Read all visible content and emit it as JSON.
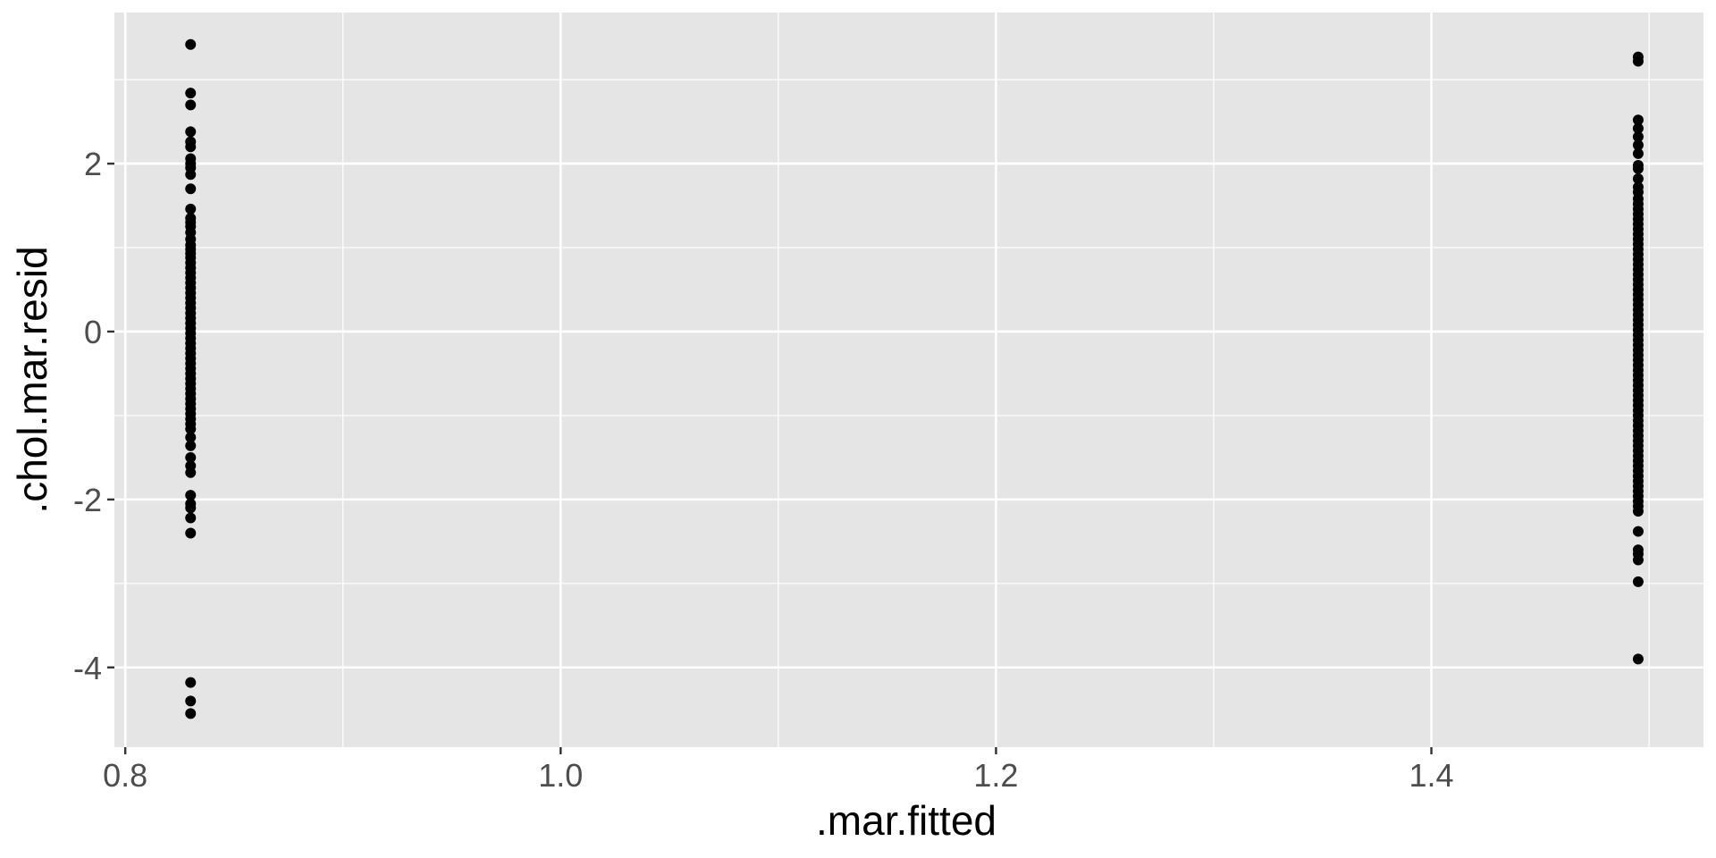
{
  "chart_data": {
    "type": "scatter",
    "title": "",
    "xlabel": ".mar.fitted",
    "ylabel": ".chol.mar.resid",
    "xlim": [
      0.795,
      1.525
    ],
    "ylim": [
      -4.95,
      3.8
    ],
    "x_ticks": [
      0.8,
      1.0,
      1.2,
      1.4
    ],
    "x_tick_labels": [
      "0.8",
      "1.0",
      "1.2",
      "1.4"
    ],
    "x_minor_ticks": [
      0.9,
      1.1,
      1.3,
      1.5
    ],
    "y_ticks": [
      -4,
      -2,
      0,
      2
    ],
    "y_tick_labels": [
      "-4",
      "-2",
      "0",
      "2"
    ],
    "y_minor_ticks": [
      -3,
      -1,
      1,
      3
    ],
    "grid": true,
    "legend": "none",
    "point_color": "#000000",
    "panel_color": "#e5e5e5",
    "grid_color": "#ffffff",
    "series": [
      {
        "x": 0.83,
        "values": [
          3.42,
          2.84,
          2.7,
          2.38,
          2.26,
          2.2,
          2.06,
          2.0,
          1.95,
          1.87,
          1.7,
          1.46,
          1.35,
          1.3,
          1.25,
          1.18,
          1.1,
          1.03,
          0.98,
          0.93,
          0.88,
          0.82,
          0.76,
          0.7,
          0.64,
          0.58,
          0.52,
          0.46,
          0.4,
          0.34,
          0.28,
          0.22,
          0.16,
          0.1,
          0.04,
          -0.02,
          -0.08,
          -0.14,
          -0.2,
          -0.26,
          -0.32,
          -0.38,
          -0.44,
          -0.5,
          -0.56,
          -0.62,
          -0.68,
          -0.74,
          -0.8,
          -0.86,
          -0.92,
          -0.98,
          -1.04,
          -1.1,
          -1.16,
          -1.26,
          -1.36,
          -1.5,
          -1.6,
          -1.68,
          -1.95,
          -2.05,
          -2.1,
          -2.22,
          -2.4,
          -4.18,
          -4.4,
          -4.55
        ]
      },
      {
        "x": 1.495,
        "values": [
          3.27,
          3.22,
          2.52,
          2.42,
          2.32,
          2.22,
          2.12,
          1.98,
          1.94,
          1.82,
          1.72,
          1.66,
          1.58,
          1.52,
          1.46,
          1.4,
          1.34,
          1.28,
          1.22,
          1.16,
          1.1,
          1.04,
          0.98,
          0.92,
          0.86,
          0.8,
          0.74,
          0.68,
          0.62,
          0.56,
          0.5,
          0.44,
          0.38,
          0.32,
          0.26,
          0.2,
          0.14,
          0.08,
          0.02,
          -0.04,
          -0.1,
          -0.16,
          -0.22,
          -0.28,
          -0.34,
          -0.4,
          -0.46,
          -0.52,
          -0.58,
          -0.64,
          -0.7,
          -0.76,
          -0.82,
          -0.88,
          -0.94,
          -1.0,
          -1.06,
          -1.12,
          -1.18,
          -1.24,
          -1.3,
          -1.36,
          -1.42,
          -1.48,
          -1.54,
          -1.6,
          -1.66,
          -1.72,
          -1.78,
          -1.84,
          -1.9,
          -1.96,
          -2.02,
          -2.08,
          -2.14,
          -2.38,
          -2.6,
          -2.65,
          -2.72,
          -2.98,
          -3.9
        ]
      }
    ]
  }
}
